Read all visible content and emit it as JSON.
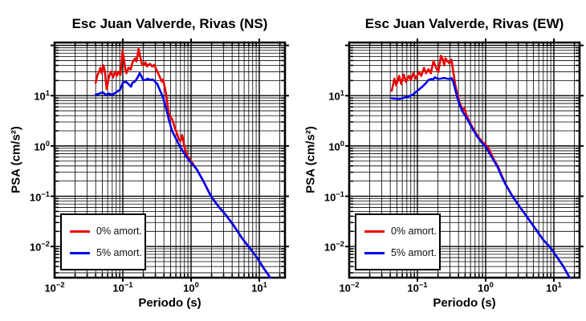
{
  "figure": {
    "background": "#ffffff",
    "frame_color": "#000000",
    "grid_color": "#000000"
  },
  "chart_data": [
    {
      "type": "line",
      "title": "Esc Juan Valverde, Rivas (NS)",
      "xlabel": "Periodo (s)",
      "ylabel": "PSA (cm/s²)",
      "x_scale": "log",
      "y_scale": "log",
      "xlim": [
        0.01,
        23.8
      ],
      "ylim": [
        0.0024,
        114
      ],
      "x_tick_exponents": [
        -2,
        -1,
        0,
        1
      ],
      "y_tick_exponents": [
        1,
        0,
        -1,
        -2
      ],
      "grid": "full log grid, minor and major, black",
      "legend": {
        "position": "bottom-left",
        "items": [
          {
            "label": "0% amort.",
            "color": "#ee0000"
          },
          {
            "label": "5% amort.",
            "color": "#0000ee"
          }
        ]
      },
      "series": [
        {
          "name": "0% amort.",
          "color": "#ee0000",
          "points": [
            [
              0.04,
              18
            ],
            [
              0.0425,
              26
            ],
            [
              0.045,
              30
            ],
            [
              0.047,
              36
            ],
            [
              0.049,
              28
            ],
            [
              0.052,
              40
            ],
            [
              0.0545,
              31
            ],
            [
              0.058,
              13.5
            ],
            [
              0.061,
              20
            ],
            [
              0.064,
              26
            ],
            [
              0.067,
              30
            ],
            [
              0.072,
              23
            ],
            [
              0.077,
              30
            ],
            [
              0.082,
              25
            ],
            [
              0.086,
              30
            ],
            [
              0.092,
              26
            ],
            [
              0.096,
              45
            ],
            [
              0.099,
              80
            ],
            [
              0.104,
              52
            ],
            [
              0.109,
              33
            ],
            [
              0.113,
              28
            ],
            [
              0.121,
              36
            ],
            [
              0.13,
              33
            ],
            [
              0.139,
              46
            ],
            [
              0.151,
              55
            ],
            [
              0.158,
              48
            ],
            [
              0.164,
              60
            ],
            [
              0.17,
              85
            ],
            [
              0.181,
              58
            ],
            [
              0.19,
              43
            ],
            [
              0.2,
              40
            ],
            [
              0.214,
              46
            ],
            [
              0.227,
              38
            ],
            [
              0.237,
              41
            ],
            [
              0.25,
              43
            ],
            [
              0.27,
              38
            ],
            [
              0.288,
              41
            ],
            [
              0.31,
              33
            ],
            [
              0.33,
              28
            ],
            [
              0.35,
              23
            ],
            [
              0.374,
              19
            ],
            [
              0.39,
              21
            ],
            [
              0.41,
              15
            ],
            [
              0.43,
              11
            ],
            [
              0.45,
              6.7
            ],
            [
              0.47,
              4.6
            ],
            [
              0.49,
              3.9
            ],
            [
              0.53,
              3.4
            ],
            [
              0.585,
              2.2
            ],
            [
              0.63,
              1.7
            ],
            [
              0.66,
              1.35
            ],
            [
              0.7,
              1.25
            ],
            [
              0.74,
              1.65
            ],
            [
              0.78,
              1.15
            ],
            [
              0.83,
              0.8
            ],
            [
              0.904,
              0.6
            ],
            [
              1.0,
              0.5
            ],
            [
              1.21,
              0.345
            ],
            [
              1.52,
              0.198
            ],
            [
              1.96,
              0.1
            ],
            [
              2.47,
              0.065
            ],
            [
              3.25,
              0.042
            ],
            [
              4.27,
              0.0255
            ],
            [
              5.6,
              0.0146
            ],
            [
              7.2,
              0.0094
            ],
            [
              9.2,
              0.0061
            ],
            [
              11.6,
              0.0037
            ],
            [
              14.5,
              0.0024
            ]
          ]
        },
        {
          "name": "5% amort.",
          "color": "#0000ee",
          "points": [
            [
              0.04,
              10.4
            ],
            [
              0.045,
              11
            ],
            [
              0.051,
              11.7
            ],
            [
              0.056,
              10.4
            ],
            [
              0.062,
              11
            ],
            [
              0.07,
              10.4
            ],
            [
              0.08,
              11.7
            ],
            [
              0.092,
              13.3
            ],
            [
              0.1,
              18
            ],
            [
              0.111,
              19
            ],
            [
              0.121,
              17
            ],
            [
              0.132,
              15.1
            ],
            [
              0.138,
              18
            ],
            [
              0.151,
              19.2
            ],
            [
              0.165,
              23
            ],
            [
              0.177,
              28
            ],
            [
              0.186,
              24.7
            ],
            [
              0.198,
              20.5
            ],
            [
              0.218,
              20.5
            ],
            [
              0.23,
              21.8
            ],
            [
              0.25,
              20.5
            ],
            [
              0.275,
              21
            ],
            [
              0.295,
              19.2
            ],
            [
              0.32,
              17
            ],
            [
              0.34,
              14
            ],
            [
              0.36,
              11.7
            ],
            [
              0.39,
              9.1
            ],
            [
              0.42,
              6.3
            ],
            [
              0.45,
              4.5
            ],
            [
              0.47,
              3.4
            ],
            [
              0.53,
              1.95
            ],
            [
              0.6,
              1.4
            ],
            [
              0.7,
              0.93
            ],
            [
              0.8,
              0.7
            ],
            [
              0.92,
              0.53
            ],
            [
              1.05,
              0.43
            ],
            [
              1.21,
              0.345
            ],
            [
              1.52,
              0.198
            ],
            [
              1.96,
              0.1
            ],
            [
              2.47,
              0.065
            ],
            [
              3.25,
              0.042
            ],
            [
              4.27,
              0.0255
            ],
            [
              5.6,
              0.0146
            ],
            [
              7.2,
              0.0094
            ],
            [
              9.2,
              0.0061
            ],
            [
              11.6,
              0.0037
            ],
            [
              14.5,
              0.0024
            ]
          ]
        }
      ]
    },
    {
      "type": "line",
      "title": "Esc Juan Valverde, Rivas (EW)",
      "xlabel": "Periodo (s)",
      "ylabel": "PSA (cm/s²)",
      "x_scale": "log",
      "y_scale": "log",
      "xlim": [
        0.01,
        23.8
      ],
      "ylim": [
        0.0024,
        114
      ],
      "x_tick_exponents": [
        -2,
        -1,
        0,
        1
      ],
      "y_tick_exponents": [
        1,
        0,
        -1,
        -2
      ],
      "grid": "full log grid, minor and major, black",
      "legend": {
        "position": "bottom-left",
        "items": [
          {
            "label": "0% amort.",
            "color": "#ee0000"
          },
          {
            "label": "5% amort.",
            "color": "#0000ee"
          }
        ]
      },
      "series": [
        {
          "name": "0% amort.",
          "color": "#ee0000",
          "points": [
            [
              0.042,
              12.5
            ],
            [
              0.046,
              21.8
            ],
            [
              0.049,
              16
            ],
            [
              0.054,
              24.7
            ],
            [
              0.058,
              17
            ],
            [
              0.063,
              26.3
            ],
            [
              0.068,
              18.8
            ],
            [
              0.075,
              24.7
            ],
            [
              0.08,
              20.5
            ],
            [
              0.087,
              27.9
            ],
            [
              0.095,
              21.8
            ],
            [
              0.105,
              29.7
            ],
            [
              0.114,
              24.7
            ],
            [
              0.125,
              35.7
            ],
            [
              0.134,
              27.9
            ],
            [
              0.146,
              33.5
            ],
            [
              0.157,
              27.9
            ],
            [
              0.172,
              48.6
            ],
            [
              0.188,
              35.7
            ],
            [
              0.203,
              29.7
            ],
            [
              0.221,
              62.4
            ],
            [
              0.236,
              52
            ],
            [
              0.247,
              40.3
            ],
            [
              0.258,
              55.3
            ],
            [
              0.274,
              48.6
            ],
            [
              0.295,
              44
            ],
            [
              0.316,
              52
            ],
            [
              0.335,
              30
            ],
            [
              0.36,
              16
            ],
            [
              0.39,
              10
            ],
            [
              0.42,
              6.9
            ],
            [
              0.46,
              5.3
            ],
            [
              0.49,
              5.6
            ],
            [
              0.52,
              4.2
            ],
            [
              0.58,
              3.0
            ],
            [
              0.66,
              2.2
            ],
            [
              0.76,
              1.6
            ],
            [
              0.87,
              1.25
            ],
            [
              1.0,
              1.05
            ],
            [
              1.1,
              0.91
            ],
            [
              1.31,
              0.55
            ],
            [
              1.5,
              0.4
            ],
            [
              1.72,
              0.26
            ],
            [
              1.97,
              0.172
            ],
            [
              2.47,
              0.1
            ],
            [
              3.2,
              0.06
            ],
            [
              4.2,
              0.036
            ],
            [
              5.5,
              0.0215
            ],
            [
              7.0,
              0.0135
            ],
            [
              8.9,
              0.0095
            ],
            [
              11.0,
              0.0063
            ],
            [
              13.8,
              0.004
            ],
            [
              17.0,
              0.0024
            ]
          ]
        },
        {
          "name": "5% amort.",
          "color": "#0000ee",
          "points": [
            [
              0.042,
              8.9
            ],
            [
              0.048,
              8.7
            ],
            [
              0.054,
              8.6
            ],
            [
              0.062,
              9.0
            ],
            [
              0.07,
              9.4
            ],
            [
              0.085,
              10.4
            ],
            [
              0.1,
              12.5
            ],
            [
              0.118,
              15.1
            ],
            [
              0.132,
              17.5
            ],
            [
              0.145,
              20.5
            ],
            [
              0.16,
              21.4
            ],
            [
              0.17,
              21.0
            ],
            [
              0.18,
              23.2
            ],
            [
              0.2,
              21.5
            ],
            [
              0.22,
              21.8
            ],
            [
              0.245,
              22.5
            ],
            [
              0.27,
              21.8
            ],
            [
              0.3,
              21.5
            ],
            [
              0.316,
              22.3
            ],
            [
              0.335,
              19
            ],
            [
              0.36,
              13
            ],
            [
              0.39,
              8.5
            ],
            [
              0.42,
              6.3
            ],
            [
              0.46,
              4.8
            ],
            [
              0.51,
              3.85
            ],
            [
              0.58,
              2.83
            ],
            [
              0.66,
              2.06
            ],
            [
              0.76,
              1.51
            ],
            [
              0.87,
              1.18
            ],
            [
              1.0,
              0.97
            ],
            [
              1.14,
              0.71
            ],
            [
              1.31,
              0.52
            ],
            [
              1.5,
              0.38
            ],
            [
              1.72,
              0.245
            ],
            [
              1.97,
              0.169
            ],
            [
              2.47,
              0.1
            ],
            [
              3.2,
              0.06
            ],
            [
              4.2,
              0.036
            ],
            [
              5.5,
              0.0215
            ],
            [
              7.0,
              0.0135
            ],
            [
              8.9,
              0.0095
            ],
            [
              11.0,
              0.0063
            ],
            [
              13.8,
              0.004
            ],
            [
              17.0,
              0.0024
            ]
          ]
        }
      ]
    }
  ]
}
